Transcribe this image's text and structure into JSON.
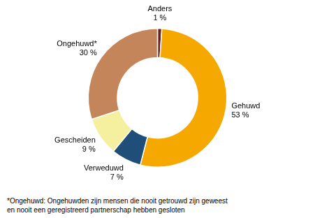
{
  "chart_data": {
    "type": "donut",
    "categories": [
      "Anders",
      "Gehuwd",
      "Verweduwd",
      "Gescheiden",
      "Ongehuwd*"
    ],
    "values": [
      1,
      53,
      7,
      9,
      30
    ],
    "value_labels": [
      "1 %",
      "53 %",
      "7 %",
      "9 %",
      "30 %"
    ],
    "colors": [
      "#6B2020",
      "#F5A800",
      "#1F4E79",
      "#F5F0A0",
      "#C4855A"
    ],
    "data_labels": true,
    "annotations": [
      "*Ongehuwd: Ongehuwden zijn mensen die nooit getrouwd zijn geweest",
      "en nooit een geregistreerd partnerschap hebben gesloten"
    ]
  }
}
